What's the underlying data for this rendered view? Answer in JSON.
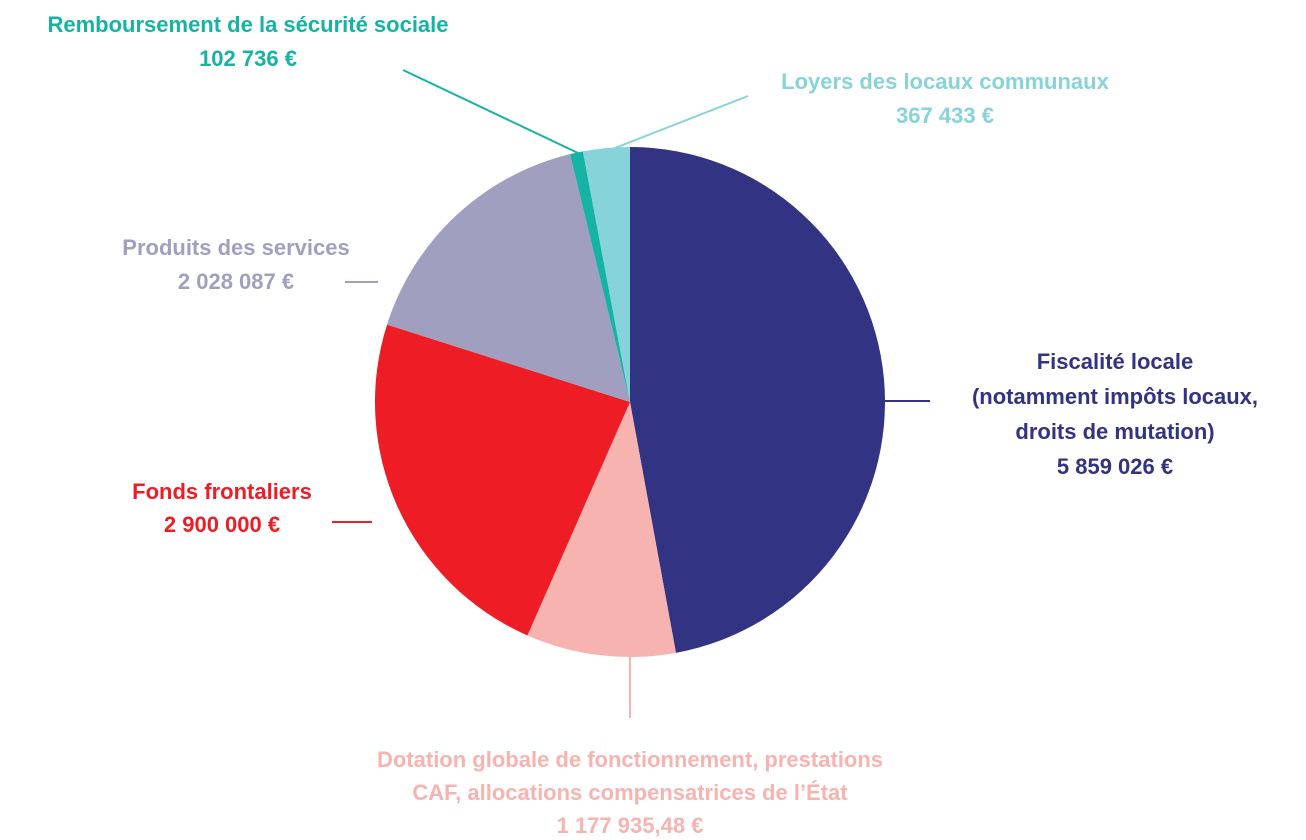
{
  "chart_data": {
    "type": "pie",
    "categories": [
      "Fiscalité locale\n(notamment impôts locaux,\ndroits de mutation)",
      "Dotation globale de fonctionnement, prestations\nCAF, allocations compensatrices de l’État",
      "Fonds frontaliers",
      "Produits des services",
      "Remboursement de la sécurité sociale",
      "Loyers des locaux communaux"
    ],
    "values": [
      5859026,
      1177935.48,
      2900000,
      2028087,
      102736,
      367433
    ],
    "value_labels": [
      "5 859 026 €",
      "1 177 935,48 €",
      "2 900 000 €",
      "2 028 087 €",
      "102 736 €",
      "367 433 €"
    ],
    "colors": [
      "#323383",
      "#f7b3b0",
      "#ee1c25",
      "#a09fc0",
      "#16b3a4",
      "#86d3da"
    ]
  }
}
